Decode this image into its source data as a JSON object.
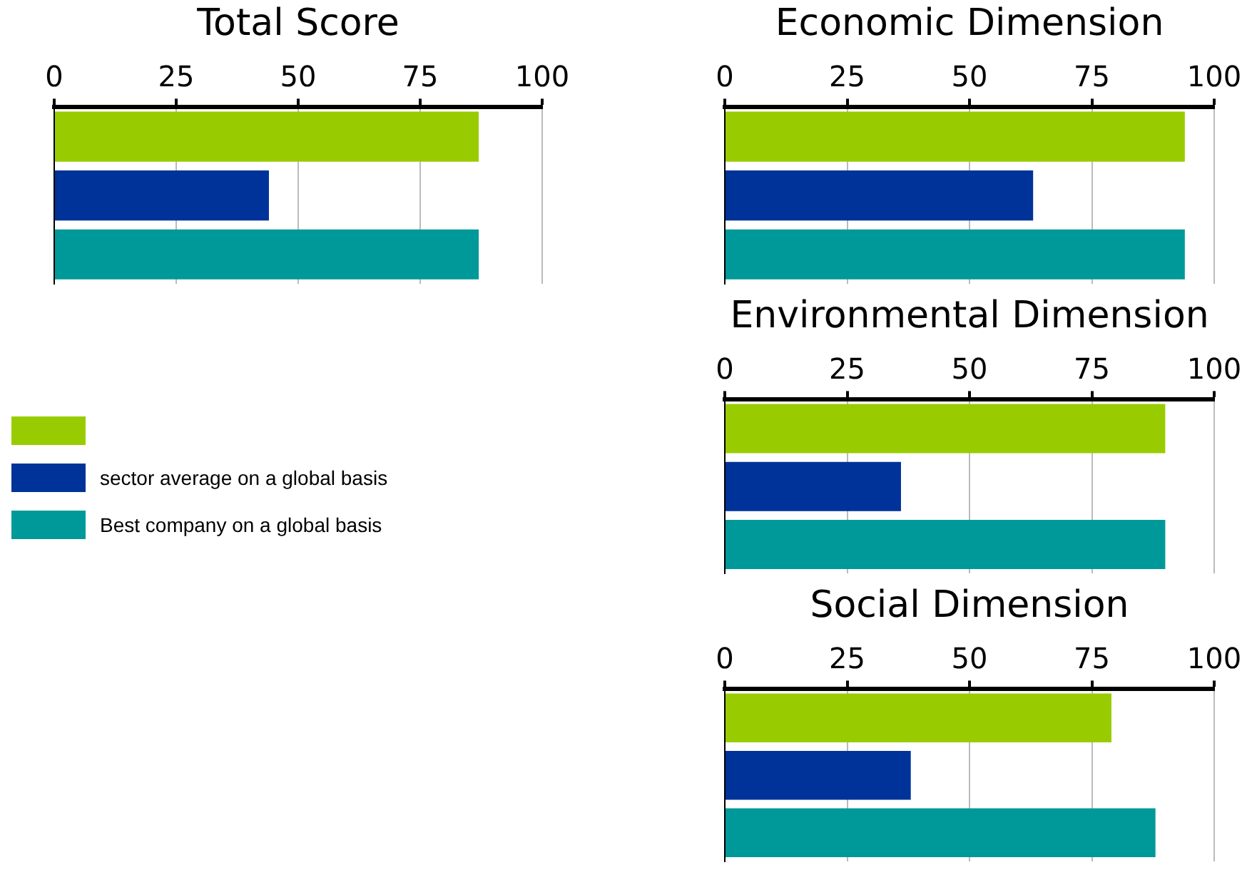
{
  "chart_data": [
    {
      "type": "bar",
      "orientation": "horizontal",
      "title": "Total Score",
      "categories": [
        null,
        null,
        null
      ],
      "series": [
        {
          "name": null,
          "color": "#99cc00",
          "values": [
            87,
            null,
            null
          ]
        },
        {
          "name": "sector average on a global basis",
          "color": "#003399",
          "values": [
            null,
            44,
            null
          ]
        },
        {
          "name": "Best company on a global basis",
          "color": "#009999",
          "values": [
            null,
            null,
            87
          ]
        }
      ],
      "xlim": [
        0,
        100
      ],
      "xticks": [
        0,
        25,
        50,
        75,
        100
      ],
      "grid": "x",
      "legend": "bottom",
      "tick_labels": "x"
    },
    {
      "type": "bar",
      "orientation": "horizontal",
      "title": "Economic Dimension",
      "categories": [
        null,
        null,
        null
      ],
      "series": [
        {
          "color": "#99cc00",
          "values": [
            94,
            null,
            null
          ]
        },
        {
          "color": "#003399",
          "values": [
            null,
            63,
            null
          ]
        },
        {
          "color": "#009999",
          "values": [
            null,
            null,
            94
          ]
        }
      ],
      "xlim": [
        0,
        100
      ],
      "xticks": [
        0,
        25,
        50,
        75,
        100
      ],
      "grid": "x",
      "tick_labels": "x"
    },
    {
      "type": "bar",
      "orientation": "horizontal",
      "title": "Environmental Dimension",
      "categories": [
        null,
        null,
        null
      ],
      "series": [
        {
          "color": "#99cc00",
          "values": [
            90,
            null,
            null
          ]
        },
        {
          "color": "#003399",
          "values": [
            null,
            36,
            null
          ]
        },
        {
          "color": "#009999",
          "values": [
            null,
            null,
            90
          ]
        }
      ],
      "xlim": [
        0,
        100
      ],
      "xticks": [
        0,
        25,
        50,
        75,
        100
      ],
      "grid": "x",
      "tick_labels": "x"
    },
    {
      "type": "bar",
      "orientation": "horizontal",
      "title": "Social Dimension",
      "categories": [
        null,
        null,
        null
      ],
      "series": [
        {
          "color": "#99cc00",
          "values": [
            79,
            null,
            null
          ]
        },
        {
          "color": "#003399",
          "values": [
            null,
            38,
            null
          ]
        },
        {
          "color": "#009999",
          "values": [
            null,
            null,
            88
          ]
        }
      ],
      "xlim": [
        0,
        100
      ],
      "xticks": [
        0,
        25,
        50,
        75,
        100
      ],
      "grid": "x",
      "tick_labels": "x"
    }
  ]
}
